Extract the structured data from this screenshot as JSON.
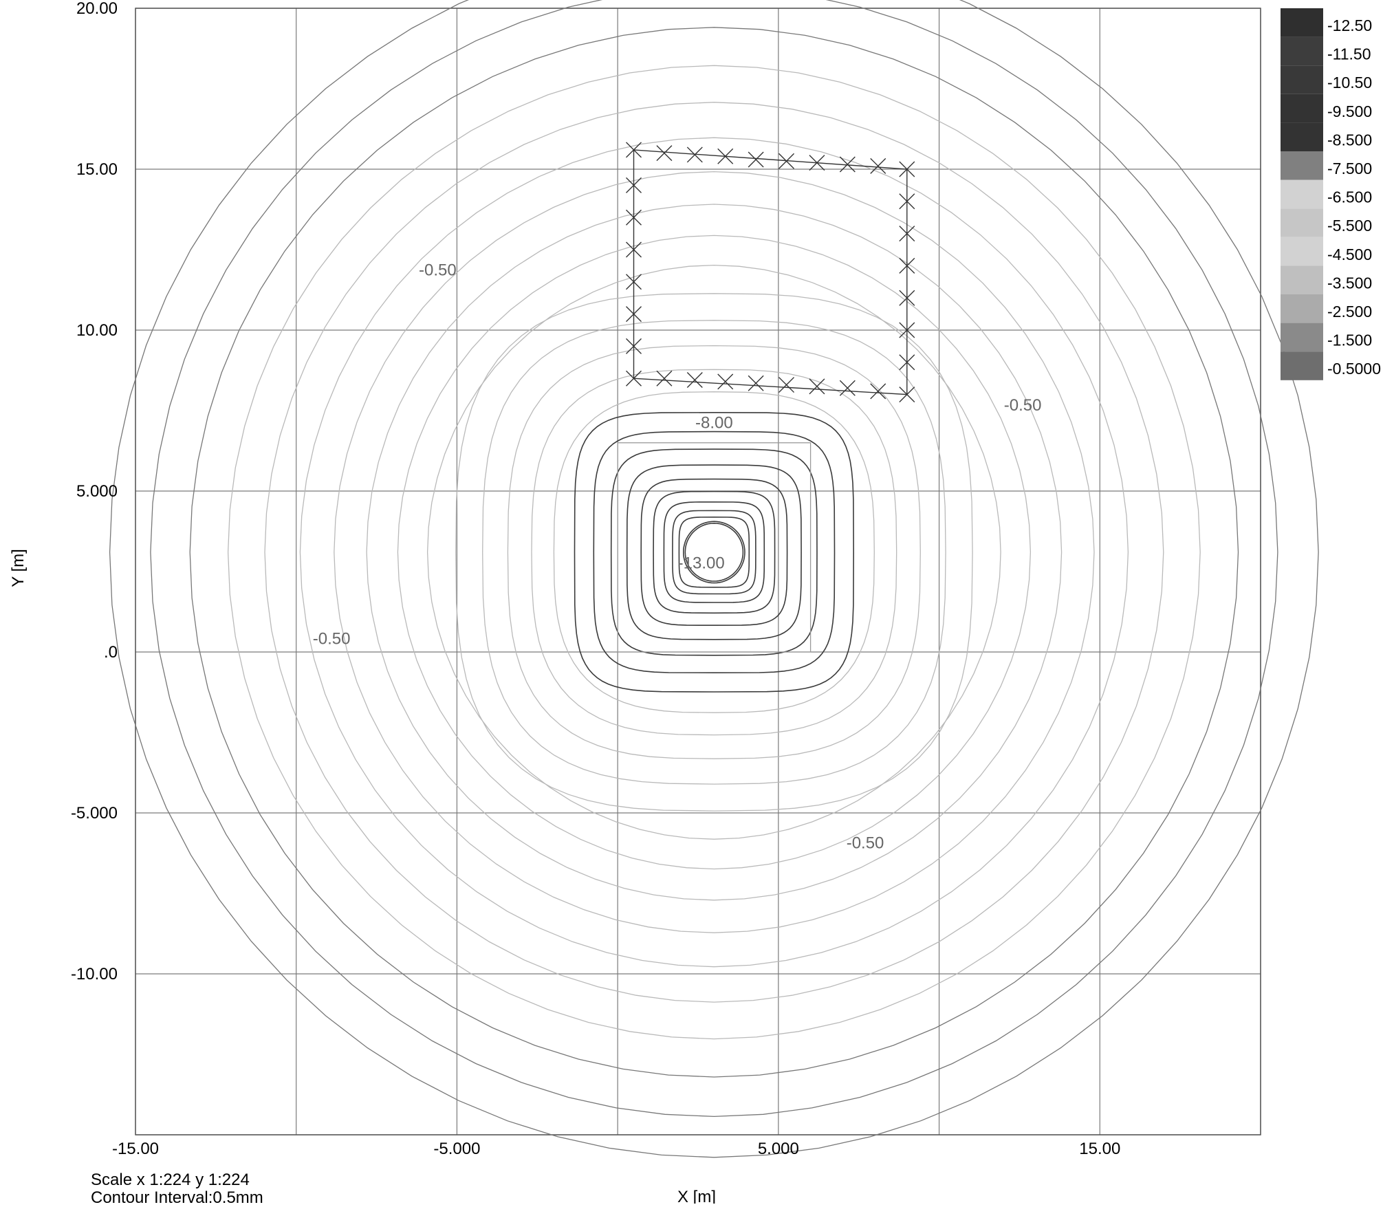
{
  "chart_data": {
    "type": "contour",
    "xlabel": "X [m]",
    "ylabel": "Y [m]",
    "xlim": [
      -15,
      20
    ],
    "ylim": [
      -15,
      20
    ],
    "grid": true,
    "x_ticks": [
      {
        "value": -15,
        "label": "-15.00"
      },
      {
        "value": -5,
        "label": "-5.000"
      },
      {
        "value": 5,
        "label": "5.000"
      },
      {
        "value": 15,
        "label": "15.00"
      }
    ],
    "y_ticks": [
      {
        "value": 20,
        "label": "20.00"
      },
      {
        "value": 15,
        "label": "15.00"
      },
      {
        "value": 10,
        "label": "10.00"
      },
      {
        "value": 5,
        "label": "5.000"
      },
      {
        "value": 0,
        "label": ".0"
      },
      {
        "value": -5,
        "label": "-5.000"
      },
      {
        "value": -10,
        "label": "-10.00"
      }
    ],
    "contour_center": [
      3,
      3.1
    ],
    "contour_interval": 0.5,
    "contour_levels": [
      -0.5,
      -1.0,
      -1.5,
      -2.0,
      -2.5,
      -3.0,
      -3.5,
      -4.0,
      -4.5,
      -5.0,
      -5.5,
      -6.0,
      -6.5,
      -7.0,
      -7.5,
      -8.0,
      -8.5,
      -9.0,
      -9.5,
      -10.0,
      -10.5,
      -11.0,
      -11.5,
      -12.0,
      -12.5,
      -13.0
    ],
    "contour_labels": [
      {
        "text": "-0.50",
        "x": -5.6,
        "y": 11.7
      },
      {
        "text": "-0.50",
        "x": 12.6,
        "y": 7.5
      },
      {
        "text": "-0.50",
        "x": -8.9,
        "y": 0.25
      },
      {
        "text": "-0.50",
        "x": 7.7,
        "y": -6.1
      },
      {
        "text": "-8.00",
        "x": 3.0,
        "y": 6.95
      },
      {
        "text": "-13.00",
        "x": 2.6,
        "y": 2.6
      }
    ],
    "loaded_area": {
      "x": [
        0,
        6
      ],
      "y": [
        0,
        6.5
      ]
    },
    "marker_polygon": [
      [
        0.5,
        15.6
      ],
      [
        9.0,
        15.0
      ],
      [
        9.0,
        8.0
      ],
      [
        0.5,
        8.5
      ]
    ],
    "markers": [
      [
        0.5,
        15.6
      ],
      [
        1.45,
        15.5
      ],
      [
        2.4,
        15.45
      ],
      [
        3.35,
        15.4
      ],
      [
        4.3,
        15.3
      ],
      [
        5.25,
        15.25
      ],
      [
        6.2,
        15.2
      ],
      [
        7.15,
        15.15
      ],
      [
        8.1,
        15.1
      ],
      [
        9.0,
        15.0
      ],
      [
        9.0,
        14.0
      ],
      [
        9.0,
        13.0
      ],
      [
        9.0,
        12.0
      ],
      [
        9.0,
        11.0
      ],
      [
        9.0,
        10.0
      ],
      [
        9.0,
        9.0
      ],
      [
        9.0,
        8.0
      ],
      [
        8.1,
        8.1
      ],
      [
        7.15,
        8.2
      ],
      [
        6.2,
        8.25
      ],
      [
        5.25,
        8.3
      ],
      [
        4.3,
        8.35
      ],
      [
        3.35,
        8.4
      ],
      [
        2.4,
        8.45
      ],
      [
        1.45,
        8.5
      ],
      [
        0.5,
        8.5
      ],
      [
        0.5,
        9.5
      ],
      [
        0.5,
        10.5
      ],
      [
        0.5,
        11.5
      ],
      [
        0.5,
        12.5
      ],
      [
        0.5,
        13.5
      ],
      [
        0.5,
        14.5
      ]
    ],
    "legend": {
      "placement": "right",
      "entries": [
        {
          "label": "-12.50",
          "color": "#2f2f2f"
        },
        {
          "label": "-11.50",
          "color": "#3d3d3d"
        },
        {
          "label": "-10.50",
          "color": "#393939"
        },
        {
          "label": "-9.500",
          "color": "#333333"
        },
        {
          "label": "-8.500",
          "color": "#333333"
        },
        {
          "label": "-7.500",
          "color": "#808080"
        },
        {
          "label": "-6.500",
          "color": "#d2d2d2"
        },
        {
          "label": "-5.500",
          "color": "#c6c6c6"
        },
        {
          "label": "-4.500",
          "color": "#d2d2d2"
        },
        {
          "label": "-3.500",
          "color": "#bfbfbf"
        },
        {
          "label": "-2.500",
          "color": "#ababab"
        },
        {
          "label": "-1.500",
          "color": "#8a8a8a"
        },
        {
          "label": "-0.5000",
          "color": "#6e6e6e"
        }
      ]
    }
  },
  "footer": {
    "scale": "Scale x 1:224  y 1:224",
    "contour_interval": "Contour Interval:0.5mm"
  }
}
